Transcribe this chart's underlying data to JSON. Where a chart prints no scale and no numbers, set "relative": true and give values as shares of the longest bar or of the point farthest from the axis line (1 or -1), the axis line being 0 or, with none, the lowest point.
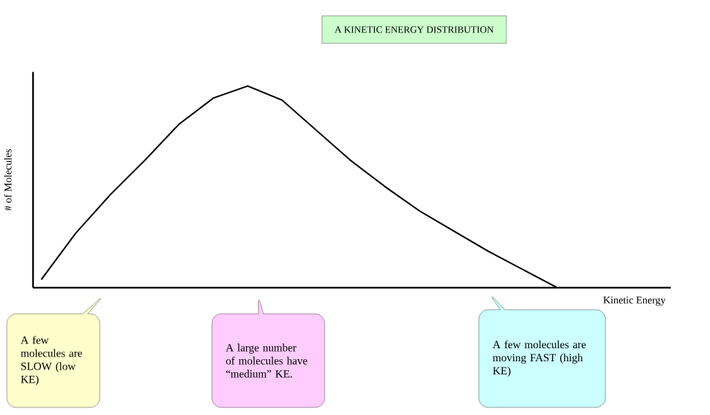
{
  "chart_data": {
    "type": "line",
    "title": "A KINETIC ENERGY DISTRIBUTION",
    "xlabel": "Kinetic Energy",
    "ylabel": "# of Molecules",
    "categories": [
      null,
      null,
      null,
      null,
      null,
      null,
      null,
      null,
      null,
      null,
      null,
      null,
      null,
      null,
      null,
      null
    ],
    "values": [
      0.04,
      0.27,
      0.46,
      0.63,
      0.81,
      0.94,
      1.0,
      0.93,
      0.78,
      0.63,
      0.5,
      0.38,
      0.28,
      0.18,
      0.09,
      0
    ],
    "color": "#000000",
    "relative": true,
    "annotations": [
      "A few molecules are SLOW (low KE)",
      "A large number of molecules have “medium” KE.",
      "A few molecules are moving FAST (high KE)"
    ]
  }
}
